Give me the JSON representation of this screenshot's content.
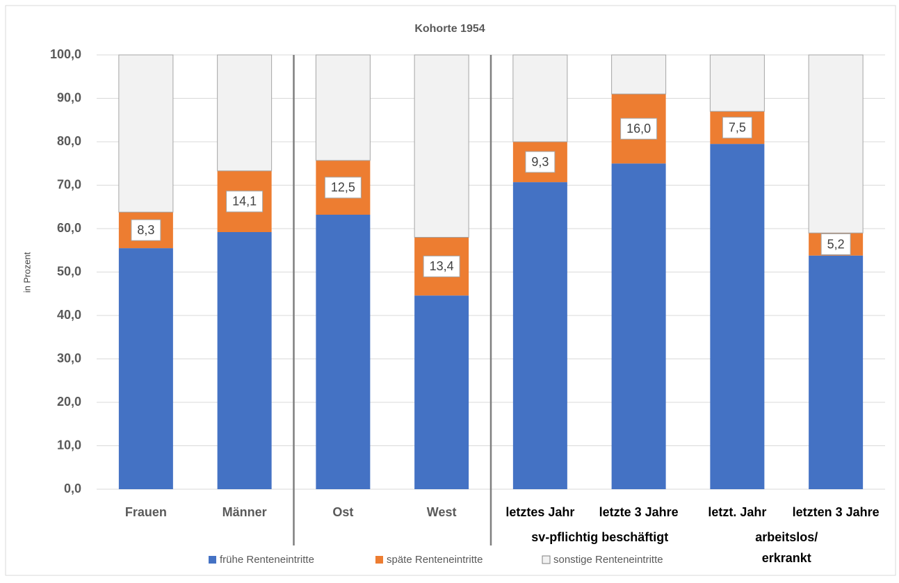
{
  "chart_data": {
    "type": "stacked_bar",
    "title": "Kohorte 1954",
    "ylabel": "in Prozent",
    "categories": [
      "Frauen",
      "Männer",
      "Ost",
      "West",
      "letztes Jahr",
      "letzte 3 Jahre",
      "letzt. Jahr",
      "letzten 3 Jahre"
    ],
    "group_labels": [
      [
        "sv-pflichtig beschäftigt"
      ],
      [
        "arbeitslos/",
        "erkrankt"
      ]
    ],
    "series": [
      {
        "name": "frühe Renteneintritte",
        "color": "#4472c4",
        "values": [
          55.5,
          59.2,
          63.2,
          44.6,
          70.7,
          75.0,
          79.5,
          53.8
        ]
      },
      {
        "name": "späte Renteneintritte",
        "color": "#ed7d31",
        "values": [
          8.3,
          14.1,
          12.5,
          13.4,
          9.3,
          16.0,
          7.5,
          5.2
        ],
        "value_labels": [
          "8,3",
          "14,1",
          "12,5",
          "13,4",
          "9,3",
          "16,0",
          "7,5",
          "5,2"
        ]
      },
      {
        "name": "sonstige Renteneintritte",
        "color": "#f2f2f2",
        "values": [
          36.2,
          26.7,
          24.3,
          42.0,
          20.0,
          9.0,
          13.0,
          41.0
        ]
      }
    ],
    "ylim": [
      0,
      100
    ],
    "yticks": [
      {
        "value": 0,
        "label": "0,0"
      },
      {
        "value": 10,
        "label": "10,0"
      },
      {
        "value": 20,
        "label": "20,0"
      },
      {
        "value": 30,
        "label": "30,0"
      },
      {
        "value": 40,
        "label": "40,0"
      },
      {
        "value": 50,
        "label": "50,0"
      },
      {
        "value": 60,
        "label": "60,0"
      },
      {
        "value": 70,
        "label": "70,0"
      },
      {
        "value": 80,
        "label": "80,0"
      },
      {
        "value": 90,
        "label": "90,0"
      },
      {
        "value": 100,
        "label": "100,0"
      }
    ],
    "grid": true,
    "legend": "bottom"
  }
}
